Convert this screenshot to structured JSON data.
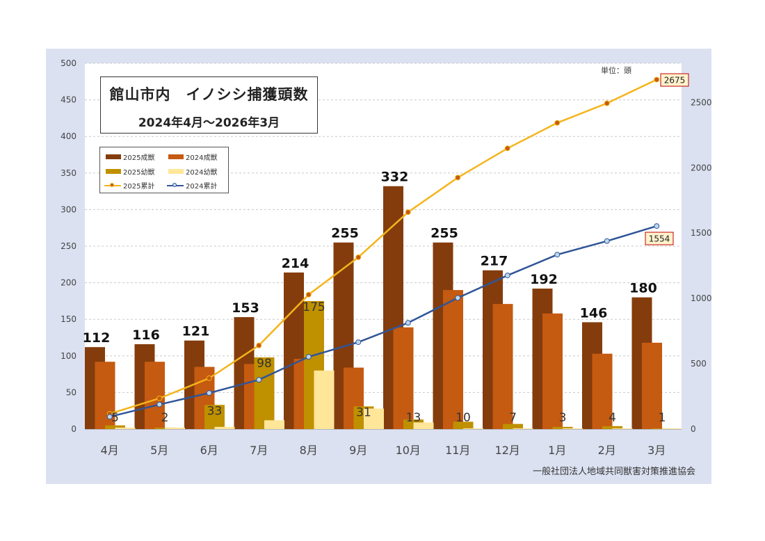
{
  "chart_data": {
    "type": "bar",
    "title": "館山市内　イノシシ捕獲頭数",
    "subtitle": "2024年4月～2026年3月",
    "unit_label": "単位：頭",
    "source": "一般社団法人地域共同獣害対策推進協会",
    "categories": [
      "4月",
      "5月",
      "6月",
      "7月",
      "8月",
      "9月",
      "10月",
      "11月",
      "12月",
      "1月",
      "2月",
      "3月"
    ],
    "y_left": {
      "range": [
        0,
        500
      ],
      "ticks": [
        "0",
        "50",
        "100",
        "150",
        "200",
        "250",
        "300",
        "350",
        "400",
        "450",
        "500"
      ]
    },
    "y_right": {
      "range": [
        0,
        2800
      ],
      "ticks": [
        "0",
        "500",
        "1000",
        "1500",
        "2000",
        "2500"
      ]
    },
    "grid": true,
    "legend_position": "top-left",
    "series": [
      {
        "name": "2025成獣",
        "kind": "bar",
        "axis": "left",
        "color": "#843c0c",
        "values": [
          112,
          116,
          121,
          153,
          214,
          255,
          332,
          255,
          217,
          192,
          146,
          180
        ],
        "labels": [
          "112",
          "116",
          "121",
          "153",
          "214",
          "255",
          "332",
          "255",
          "217",
          "192",
          "146",
          "180"
        ]
      },
      {
        "name": "2024成獣",
        "kind": "bar",
        "axis": "left",
        "color": "#c55a11",
        "values": [
          92,
          92,
          85,
          89,
          96,
          84,
          139,
          190,
          171,
          158,
          103,
          118
        ]
      },
      {
        "name": "2025幼獣",
        "kind": "bar",
        "axis": "left",
        "color": "#bf9000",
        "values": [
          5,
          2,
          33,
          98,
          175,
          31,
          13,
          10,
          7,
          3,
          4,
          1
        ],
        "labels": [
          "5",
          "2",
          "33",
          "98",
          "175",
          "31",
          "13",
          "10",
          "7",
          "3",
          "4",
          "1"
        ]
      },
      {
        "name": "2024幼獣",
        "kind": "bar",
        "axis": "left",
        "color": "#ffe699",
        "values": [
          2,
          2,
          3,
          12,
          80,
          28,
          9,
          1,
          1,
          1,
          1,
          1
        ]
      },
      {
        "name": "2025累計",
        "kind": "line",
        "axis": "right",
        "color": "#f4b41a",
        "marker_color": "#c55a11",
        "values": [
          117,
          235,
          389,
          640,
          1029,
          1315,
          1660,
          1925,
          2149,
          2344,
          2494,
          2675
        ],
        "end_label": "2675"
      },
      {
        "name": "2024累計",
        "kind": "line",
        "axis": "right",
        "color": "#2f5597",
        "marker_color": "#bdd7ee",
        "values": [
          94,
          188,
          276,
          377,
          553,
          665,
          813,
          1004,
          1176,
          1335,
          1439,
          1554
        ],
        "end_label": "1554"
      }
    ]
  }
}
